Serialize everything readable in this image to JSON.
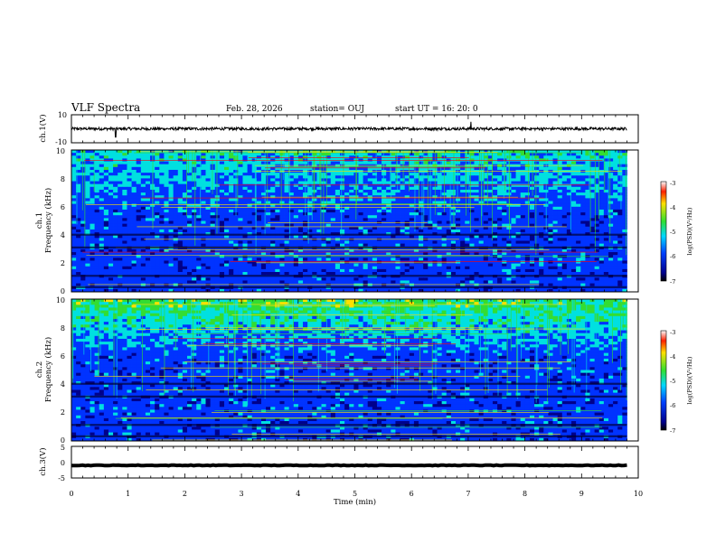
{
  "header": {
    "title": "VLF Spectra",
    "date": "Feb. 28, 2026",
    "station": "station= OUJ",
    "start": "start  UT =   16: 20: 0"
  },
  "chart_data": [
    {
      "type": "line",
      "name": "ch.1(V)",
      "ylabel": "ch.1(V)",
      "ylim": [
        -10,
        10
      ],
      "yticks": [
        "10",
        "-10"
      ],
      "xlim": [
        0,
        10
      ],
      "description_values": {
        "baseline": 0,
        "amplitude": 1,
        "spikes": [
          {
            "x": 0.78,
            "y": -6
          },
          {
            "x": 7.05,
            "y": 5
          }
        ]
      }
    },
    {
      "type": "heatmap",
      "name": "ch.1 spectrogram",
      "ylabel": "ch.1",
      "ylabel2": "Frequency  (kHz)",
      "ylim": [
        0,
        10
      ],
      "yticks": [
        "0",
        "2",
        "4",
        "6",
        "8",
        "10"
      ],
      "xlim": [
        0,
        10
      ],
      "colorbar": {
        "label": "log(PSD)(V²/Hz)",
        "range": [
          -7,
          -3
        ],
        "ticks": [
          "-3",
          "-4",
          "-5",
          "-6",
          "-7"
        ]
      }
    },
    {
      "type": "heatmap",
      "name": "ch.2 spectrogram",
      "ylabel": "ch.2",
      "ylabel2": "Frequency  (kHz)",
      "ylim": [
        0,
        10
      ],
      "yticks": [
        "0",
        "2",
        "4",
        "6",
        "8",
        "10"
      ],
      "xlim": [
        0,
        10
      ],
      "colorbar": {
        "label": "log(PSD)(V²/Hz)",
        "range": [
          -7,
          -3
        ],
        "ticks": [
          "-3",
          "-4",
          "-5",
          "-6",
          "-7"
        ]
      }
    },
    {
      "type": "line",
      "name": "ch.3(V)",
      "ylabel": "ch.3(V)",
      "ylim": [
        -5,
        5
      ],
      "yticks": [
        "5",
        "0",
        "-5"
      ],
      "xlim": [
        0,
        10
      ],
      "description_values": {
        "baseline": -1,
        "amplitude": 0.2
      }
    }
  ],
  "xaxis": {
    "label": "Time  (min)",
    "ticks": [
      "0",
      "1",
      "2",
      "3",
      "4",
      "5",
      "6",
      "7",
      "8",
      "9",
      "10"
    ]
  },
  "colors": {
    "lowest": "#00008b",
    "low": "#0033ff",
    "mid": "#00e0e0",
    "midhigh": "#33dd33",
    "high": "#ffe000",
    "highest": "#ff0000"
  }
}
